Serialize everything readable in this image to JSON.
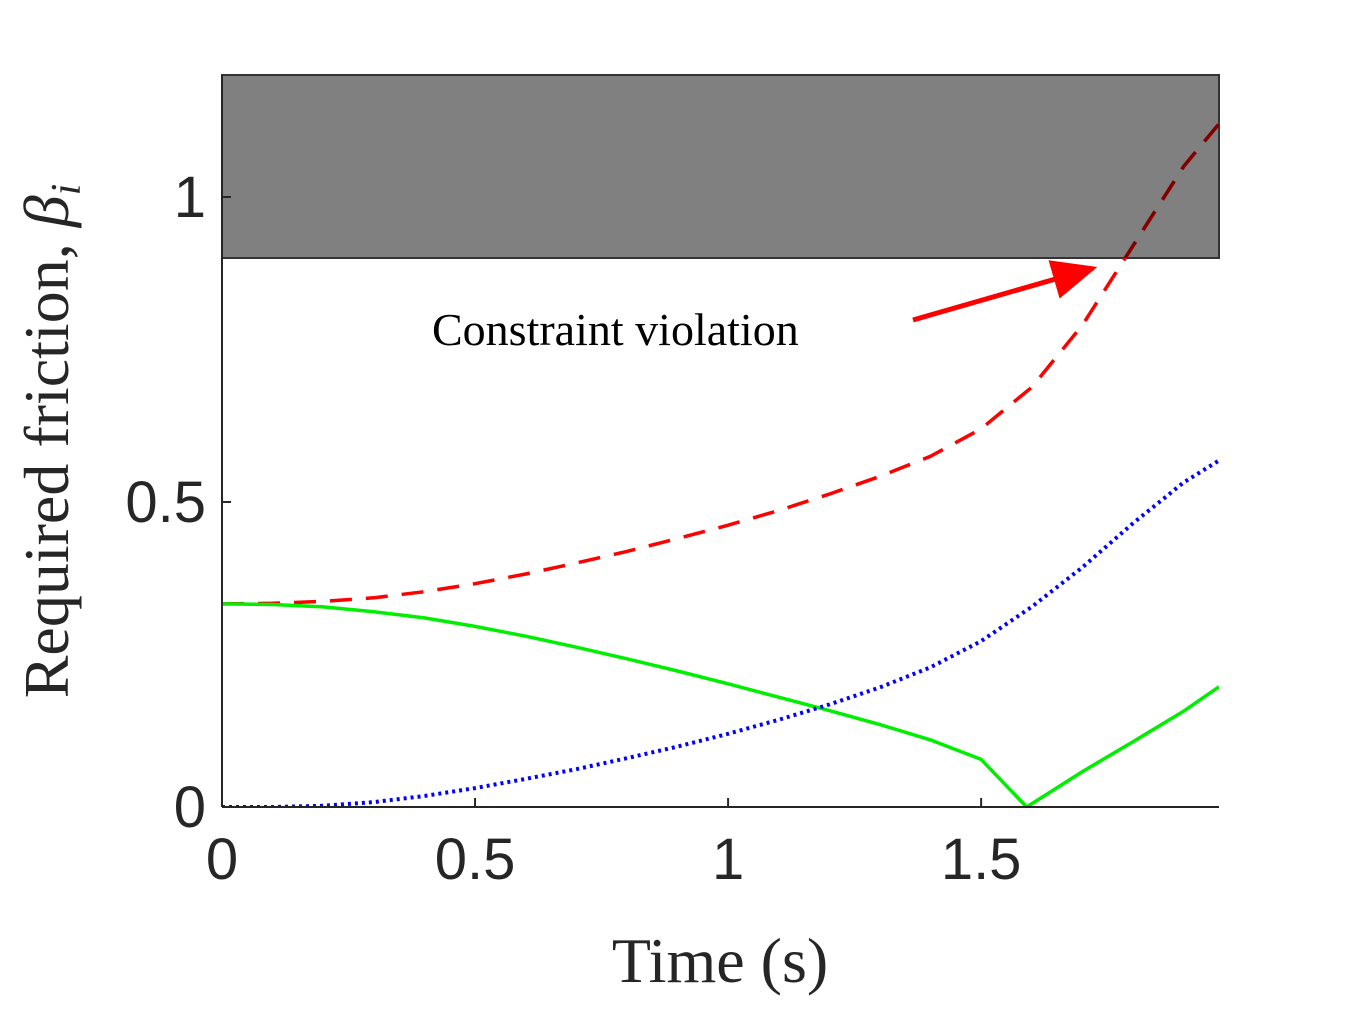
{
  "chart_data": {
    "type": "line",
    "xlabel": "Time (s)",
    "ylabel": "Required friction, ",
    "ylabel_symbol": "β",
    "ylabel_subscript": "i",
    "xlim": [
      0,
      1.97
    ],
    "ylim": [
      0,
      1.2
    ],
    "x_ticks": [
      0,
      0.5,
      1,
      1.5
    ],
    "x_tick_labels": [
      "0",
      "0.5",
      "1",
      "1.5"
    ],
    "y_ticks": [
      0,
      0.5,
      1
    ],
    "y_tick_labels": [
      "0",
      "0.5",
      "1"
    ],
    "grid": false,
    "shaded_region": {
      "y_from": 0.9,
      "y_to": 1.2,
      "color": "#808080"
    },
    "annotation": {
      "text": "Constraint violation",
      "arrow_color": "#ff0000",
      "points_to": {
        "x": 1.72,
        "y": 0.883
      }
    },
    "series": [
      {
        "style": "dashed",
        "color": "#ff0000",
        "color_in_region": "#800000",
        "x": [
          0,
          0.1,
          0.2,
          0.3,
          0.4,
          0.5,
          0.6,
          0.7,
          0.8,
          0.9,
          1.0,
          1.1,
          1.2,
          1.3,
          1.4,
          1.5,
          1.6,
          1.7,
          1.8,
          1.9,
          1.97
        ],
        "values": [
          0.333,
          0.334,
          0.337,
          0.343,
          0.353,
          0.366,
          0.382,
          0.4,
          0.419,
          0.44,
          0.462,
          0.486,
          0.513,
          0.542,
          0.575,
          0.62,
          0.688,
          0.79,
          0.92,
          1.05,
          1.12
        ]
      },
      {
        "style": "solid",
        "color": "#00ee00",
        "x": [
          0,
          0.1,
          0.2,
          0.3,
          0.4,
          0.5,
          0.6,
          0.7,
          0.8,
          0.9,
          1.0,
          1.1,
          1.2,
          1.3,
          1.4,
          1.5,
          1.59,
          1.7,
          1.8,
          1.9,
          1.97
        ],
        "values": [
          0.333,
          0.332,
          0.328,
          0.32,
          0.31,
          0.296,
          0.28,
          0.262,
          0.243,
          0.223,
          0.202,
          0.18,
          0.158,
          0.135,
          0.11,
          0.078,
          0.0,
          0.058,
          0.107,
          0.157,
          0.197
        ]
      },
      {
        "style": "dotted",
        "color": "#0000ff",
        "x": [
          0,
          0.1,
          0.2,
          0.3,
          0.4,
          0.5,
          0.6,
          0.7,
          0.8,
          0.9,
          1.0,
          1.1,
          1.2,
          1.3,
          1.4,
          1.5,
          1.6,
          1.7,
          1.8,
          1.9,
          1.97
        ],
        "values": [
          0.0,
          0.0,
          0.002,
          0.008,
          0.018,
          0.031,
          0.046,
          0.062,
          0.08,
          0.099,
          0.12,
          0.143,
          0.168,
          0.196,
          0.229,
          0.272,
          0.328,
          0.393,
          0.465,
          0.532,
          0.568
        ]
      }
    ]
  }
}
